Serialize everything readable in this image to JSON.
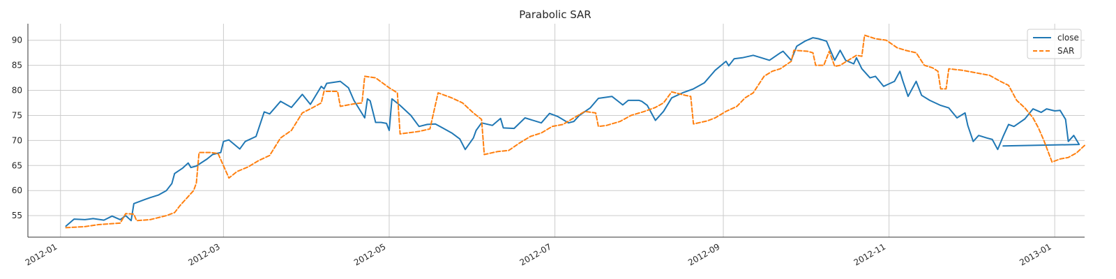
{
  "chart_data": {
    "type": "line",
    "title": "Parabolic SAR",
    "xlabel": "",
    "ylabel": "",
    "x_range": [
      "2011-12-20",
      "2013-01-12"
    ],
    "ylim": [
      50.7,
      93.3
    ],
    "x_ticks": [
      "2012-01-01",
      "2012-03-01",
      "2012-05-01",
      "2012-07-01",
      "2012-09-01",
      "2012-11-01",
      "2013-01-01"
    ],
    "x_tick_labels": [
      "2012-01",
      "2012-03",
      "2012-05",
      "2012-07",
      "2012-09",
      "2012-11",
      "2013-01"
    ],
    "y_ticks": [
      55,
      60,
      65,
      70,
      75,
      80,
      85,
      90
    ],
    "y_tick_labels": [
      "55",
      "60",
      "65",
      "70",
      "75",
      "80",
      "85",
      "90"
    ],
    "grid": true,
    "legend_position": "top-right",
    "series": [
      {
        "name": "close",
        "color": "#1f77b4",
        "style": "solid",
        "points": [
          [
            "2012-01-03",
            52.9
          ],
          [
            "2012-01-06",
            54.3
          ],
          [
            "2012-01-10",
            54.2
          ],
          [
            "2012-01-13",
            54.4
          ],
          [
            "2012-01-17",
            54.1
          ],
          [
            "2012-01-20",
            54.9
          ],
          [
            "2012-01-23",
            54.2
          ],
          [
            "2012-01-25",
            55.0
          ],
          [
            "2012-01-27",
            54.0
          ],
          [
            "2012-01-28",
            57.4
          ],
          [
            "2012-02-01",
            58.2
          ],
          [
            "2012-02-03",
            58.6
          ],
          [
            "2012-02-06",
            59.1
          ],
          [
            "2012-02-09",
            60.0
          ],
          [
            "2012-02-11",
            61.4
          ],
          [
            "2012-02-12",
            63.4
          ],
          [
            "2012-02-15",
            64.5
          ],
          [
            "2012-02-17",
            65.5
          ],
          [
            "2012-02-18",
            64.6
          ],
          [
            "2012-02-20",
            64.9
          ],
          [
            "2012-02-24",
            66.3
          ],
          [
            "2012-02-26",
            67.2
          ],
          [
            "2012-02-29",
            67.6
          ],
          [
            "2012-03-01",
            69.8
          ],
          [
            "2012-03-03",
            70.1
          ],
          [
            "2012-03-07",
            68.3
          ],
          [
            "2012-03-09",
            69.8
          ],
          [
            "2012-03-13",
            70.8
          ],
          [
            "2012-03-16",
            75.7
          ],
          [
            "2012-03-18",
            75.3
          ],
          [
            "2012-03-22",
            77.8
          ],
          [
            "2012-03-26",
            76.6
          ],
          [
            "2012-03-30",
            79.2
          ],
          [
            "2012-04-02",
            77.2
          ],
          [
            "2012-04-06",
            80.8
          ],
          [
            "2012-04-07",
            80.3
          ],
          [
            "2012-04-08",
            81.4
          ],
          [
            "2012-04-13",
            81.8
          ],
          [
            "2012-04-16",
            80.5
          ],
          [
            "2012-04-18",
            78.0
          ],
          [
            "2012-04-22",
            74.5
          ],
          [
            "2012-04-23",
            78.3
          ],
          [
            "2012-04-24",
            77.9
          ],
          [
            "2012-04-26",
            73.6
          ],
          [
            "2012-04-28",
            73.6
          ],
          [
            "2012-04-30",
            73.4
          ],
          [
            "2012-05-01",
            72.0
          ],
          [
            "2012-05-02",
            78.3
          ],
          [
            "2012-05-05",
            77.0
          ],
          [
            "2012-05-09",
            75.0
          ],
          [
            "2012-05-12",
            72.8
          ],
          [
            "2012-05-15",
            73.2
          ],
          [
            "2012-05-18",
            73.3
          ],
          [
            "2012-05-21",
            72.4
          ],
          [
            "2012-05-24",
            71.5
          ],
          [
            "2012-05-27",
            70.3
          ],
          [
            "2012-05-29",
            68.2
          ],
          [
            "2012-06-01",
            70.5
          ],
          [
            "2012-06-02",
            72.0
          ],
          [
            "2012-06-04",
            73.5
          ],
          [
            "2012-06-08",
            73.0
          ],
          [
            "2012-06-11",
            74.4
          ],
          [
            "2012-06-12",
            72.5
          ],
          [
            "2012-06-16",
            72.4
          ],
          [
            "2012-06-20",
            74.5
          ],
          [
            "2012-06-26",
            73.5
          ],
          [
            "2012-06-29",
            75.4
          ],
          [
            "2012-07-02",
            74.8
          ],
          [
            "2012-07-06",
            73.5
          ],
          [
            "2012-07-08",
            73.8
          ],
          [
            "2012-07-10",
            75.0
          ],
          [
            "2012-07-14",
            76.5
          ],
          [
            "2012-07-17",
            78.4
          ],
          [
            "2012-07-22",
            78.8
          ],
          [
            "2012-07-26",
            77.1
          ],
          [
            "2012-07-28",
            78.0
          ],
          [
            "2012-08-01",
            78.0
          ],
          [
            "2012-08-02",
            77.8
          ],
          [
            "2012-08-04",
            77.0
          ],
          [
            "2012-08-07",
            74.0
          ],
          [
            "2012-08-10",
            75.8
          ],
          [
            "2012-08-13",
            78.5
          ],
          [
            "2012-08-17",
            79.5
          ],
          [
            "2012-08-21",
            80.3
          ],
          [
            "2012-08-25",
            81.5
          ],
          [
            "2012-08-29",
            84.0
          ],
          [
            "2012-09-02",
            85.8
          ],
          [
            "2012-09-03",
            84.9
          ],
          [
            "2012-09-05",
            86.3
          ],
          [
            "2012-09-08",
            86.5
          ],
          [
            "2012-09-12",
            87.0
          ],
          [
            "2012-09-15",
            86.5
          ],
          [
            "2012-09-18",
            86.0
          ],
          [
            "2012-09-22",
            87.5
          ],
          [
            "2012-09-23",
            87.8
          ],
          [
            "2012-09-26",
            86.0
          ],
          [
            "2012-09-28",
            88.8
          ],
          [
            "2012-10-01",
            89.8
          ],
          [
            "2012-10-04",
            90.5
          ],
          [
            "2012-10-06",
            90.3
          ],
          [
            "2012-10-09",
            89.8
          ],
          [
            "2012-10-10",
            88.5
          ],
          [
            "2012-10-12",
            86.0
          ],
          [
            "2012-10-14",
            88.0
          ],
          [
            "2012-10-16",
            86.0
          ],
          [
            "2012-10-19",
            85.3
          ],
          [
            "2012-10-20",
            86.5
          ],
          [
            "2012-10-22",
            84.3
          ],
          [
            "2012-10-25",
            82.5
          ],
          [
            "2012-10-27",
            82.8
          ],
          [
            "2012-10-30",
            80.8
          ],
          [
            "2012-11-03",
            81.8
          ],
          [
            "2012-11-05",
            83.8
          ],
          [
            "2012-11-06",
            82.0
          ],
          [
            "2012-11-08",
            78.8
          ],
          [
            "2012-11-11",
            81.8
          ],
          [
            "2012-11-13",
            79.0
          ],
          [
            "2012-11-16",
            78.0
          ],
          [
            "2012-11-20",
            77.0
          ],
          [
            "2012-11-23",
            76.5
          ],
          [
            "2012-11-26",
            74.5
          ],
          [
            "2012-11-29",
            75.5
          ],
          [
            "2012-11-30",
            73.0
          ],
          [
            "2012-12-02",
            69.8
          ],
          [
            "2012-12-04",
            71.0
          ],
          [
            "2012-12-07",
            70.5
          ],
          [
            "2012-12-09",
            70.2
          ],
          [
            "2012-12-11",
            68.2
          ],
          [
            "2012-12-13",
            70.8
          ],
          [
            "2012-12-15",
            73.2
          ],
          [
            "2012-12-17",
            72.8
          ],
          [
            "2012-12-21",
            74.3
          ],
          [
            "2012-12-24",
            76.3
          ],
          [
            "2012-12-27",
            75.6
          ],
          [
            "2012-12-29",
            76.3
          ],
          [
            "2013-01-01",
            75.9
          ],
          [
            "2013-01-03",
            76.0
          ],
          [
            "2013-01-05",
            74.2
          ],
          [
            "2013-01-06",
            69.8
          ],
          [
            "2013-01-08",
            71.0
          ],
          [
            "2013-01-10",
            69.2
          ],
          [
            "2012-12-13",
            68.9
          ]
        ]
      },
      {
        "name": "SAR",
        "color": "#ff7f0e",
        "style": "dashed",
        "points": [
          [
            "2012-01-03",
            52.6
          ],
          [
            "2012-01-10",
            52.8
          ],
          [
            "2012-01-15",
            53.2
          ],
          [
            "2012-01-20",
            53.4
          ],
          [
            "2012-01-23",
            53.5
          ],
          [
            "2012-01-25",
            55.4
          ],
          [
            "2012-01-28",
            55.3
          ],
          [
            "2012-01-29",
            54.0
          ],
          [
            "2012-02-03",
            54.2
          ],
          [
            "2012-02-09",
            55.0
          ],
          [
            "2012-02-12",
            55.6
          ],
          [
            "2012-02-14",
            57.0
          ],
          [
            "2012-02-17",
            58.8
          ],
          [
            "2012-02-19",
            60.0
          ],
          [
            "2012-02-20",
            61.5
          ],
          [
            "2012-02-21",
            67.6
          ],
          [
            "2012-02-25",
            67.6
          ],
          [
            "2012-02-28",
            67.4
          ],
          [
            "2012-03-03",
            62.5
          ],
          [
            "2012-03-06",
            63.8
          ],
          [
            "2012-03-10",
            64.7
          ],
          [
            "2012-03-14",
            66.0
          ],
          [
            "2012-03-18",
            67.0
          ],
          [
            "2012-03-22",
            70.5
          ],
          [
            "2012-03-26",
            72.0
          ],
          [
            "2012-03-30",
            75.5
          ],
          [
            "2012-04-03",
            76.6
          ],
          [
            "2012-04-06",
            77.5
          ],
          [
            "2012-04-07",
            79.8
          ],
          [
            "2012-04-12",
            79.8
          ],
          [
            "2012-04-13",
            76.8
          ],
          [
            "2012-04-18",
            77.3
          ],
          [
            "2012-04-21",
            77.5
          ],
          [
            "2012-04-22",
            82.8
          ],
          [
            "2012-04-26",
            82.5
          ],
          [
            "2012-05-01",
            80.5
          ],
          [
            "2012-05-04",
            79.5
          ],
          [
            "2012-05-05",
            71.3
          ],
          [
            "2012-05-12",
            71.8
          ],
          [
            "2012-05-16",
            72.3
          ],
          [
            "2012-05-19",
            79.5
          ],
          [
            "2012-05-24",
            78.5
          ],
          [
            "2012-05-28",
            77.5
          ],
          [
            "2012-06-01",
            75.5
          ],
          [
            "2012-06-04",
            74.2
          ],
          [
            "2012-06-05",
            67.2
          ],
          [
            "2012-06-10",
            67.8
          ],
          [
            "2012-06-14",
            68.0
          ],
          [
            "2012-06-18",
            69.5
          ],
          [
            "2012-06-22",
            70.8
          ],
          [
            "2012-06-26",
            71.5
          ],
          [
            "2012-06-30",
            72.8
          ],
          [
            "2012-07-04",
            73.2
          ],
          [
            "2012-07-08",
            74.5
          ],
          [
            "2012-07-12",
            75.8
          ],
          [
            "2012-07-16",
            75.5
          ],
          [
            "2012-07-17",
            72.8
          ],
          [
            "2012-07-20",
            73.0
          ],
          [
            "2012-07-25",
            73.8
          ],
          [
            "2012-07-29",
            75.0
          ],
          [
            "2012-08-03",
            75.8
          ],
          [
            "2012-08-07",
            76.6
          ],
          [
            "2012-08-10",
            77.5
          ],
          [
            "2012-08-13",
            79.7
          ],
          [
            "2012-08-18",
            79.0
          ],
          [
            "2012-08-20",
            78.8
          ],
          [
            "2012-08-21",
            73.3
          ],
          [
            "2012-08-26",
            73.9
          ],
          [
            "2012-08-29",
            74.5
          ],
          [
            "2012-09-02",
            75.8
          ],
          [
            "2012-09-06",
            76.8
          ],
          [
            "2012-09-09",
            78.5
          ],
          [
            "2012-09-12",
            79.5
          ],
          [
            "2012-09-16",
            82.8
          ],
          [
            "2012-09-19",
            83.8
          ],
          [
            "2012-09-22",
            84.3
          ],
          [
            "2012-09-26",
            85.8
          ],
          [
            "2012-09-27",
            88.0
          ],
          [
            "2012-10-02",
            87.8
          ],
          [
            "2012-10-04",
            87.5
          ],
          [
            "2012-10-05",
            85.0
          ],
          [
            "2012-10-08",
            85.0
          ],
          [
            "2012-10-10",
            87.8
          ],
          [
            "2012-10-12",
            84.8
          ],
          [
            "2012-10-14",
            85.0
          ],
          [
            "2012-10-17",
            86.0
          ],
          [
            "2012-10-20",
            87.0
          ],
          [
            "2012-10-22",
            86.8
          ],
          [
            "2012-10-23",
            91.0
          ],
          [
            "2012-10-27",
            90.3
          ],
          [
            "2012-10-31",
            90.0
          ],
          [
            "2012-11-04",
            88.5
          ],
          [
            "2012-11-07",
            88.0
          ],
          [
            "2012-11-11",
            87.5
          ],
          [
            "2012-11-14",
            85.0
          ],
          [
            "2012-11-17",
            84.5
          ],
          [
            "2012-11-19",
            83.8
          ],
          [
            "2012-11-20",
            80.3
          ],
          [
            "2012-11-22",
            80.3
          ],
          [
            "2012-11-23",
            84.3
          ],
          [
            "2012-11-28",
            84.0
          ],
          [
            "2012-12-03",
            83.5
          ],
          [
            "2012-12-08",
            83.0
          ],
          [
            "2012-12-12",
            81.8
          ],
          [
            "2012-12-15",
            81.0
          ],
          [
            "2012-12-18",
            78.0
          ],
          [
            "2012-12-21",
            76.5
          ],
          [
            "2012-12-24",
            74.5
          ],
          [
            "2012-12-26",
            72.5
          ],
          [
            "2012-12-28",
            70.0
          ],
          [
            "2012-12-31",
            65.7
          ],
          [
            "2013-01-03",
            66.3
          ],
          [
            "2013-01-06",
            66.6
          ],
          [
            "2013-01-09",
            67.5
          ],
          [
            "2013-01-12",
            69.0
          ]
        ]
      }
    ]
  }
}
